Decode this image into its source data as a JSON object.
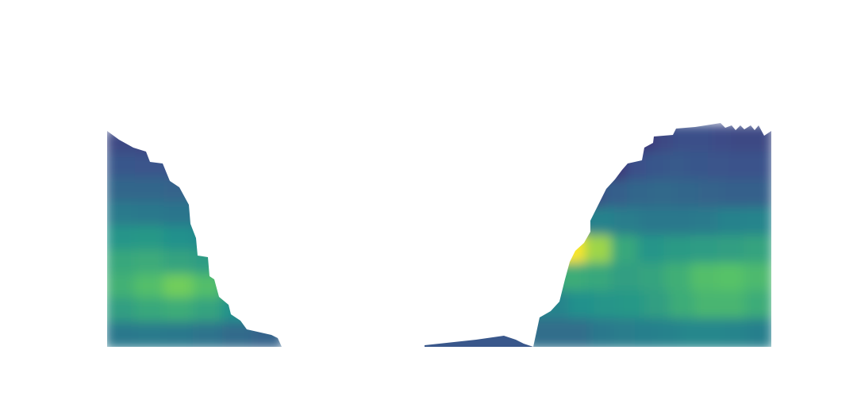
{
  "chart_data": {
    "type": "heatmap",
    "title": "",
    "xlabel": "",
    "ylabel": "",
    "axes_visible": false,
    "colormap": "viridis",
    "colormap_stops": [
      "#440154",
      "#3b528b",
      "#21918c",
      "#5ec962",
      "#fde725"
    ],
    "regions": [
      {
        "name": "left-region",
        "rows": [
          {
            "x_end": 0.62,
            "v": [
              0.22,
              0.21,
              0.2,
              0.2,
              0.19
            ]
          },
          {
            "x_end": 0.74,
            "v": [
              0.27,
              0.26,
              0.25,
              0.25,
              0.24,
              0.22
            ]
          },
          {
            "x_end": 0.84,
            "v": [
              0.33,
              0.33,
              0.32,
              0.31,
              0.3,
              0.28
            ]
          },
          {
            "x_end": 0.93,
            "v": [
              0.41,
              0.4,
              0.39,
              0.38,
              0.37,
              0.35
            ]
          },
          {
            "x_end": 1.0,
            "v": [
              0.52,
              0.53,
              0.5,
              0.47,
              0.44,
              0.41
            ]
          },
          {
            "x_end": 1.0,
            "v": [
              0.6,
              0.61,
              0.58,
              0.55,
              0.5,
              0.45
            ]
          },
          {
            "x_end": 1.0,
            "v": [
              0.64,
              0.7,
              0.78,
              0.7,
              0.56,
              0.48
            ]
          },
          {
            "x_end": 1.0,
            "v": [
              0.56,
              0.6,
              0.62,
              0.58,
              0.5,
              0.43
            ]
          },
          {
            "x_end": 1.0,
            "v": [
              0.4,
              0.41,
              0.4,
              0.38,
              0.35,
              0.32
            ]
          }
        ]
      },
      {
        "name": "right-region",
        "rows": [
          {
            "x_start": 0.35,
            "v": [
              0.1,
              0.17,
              0.22,
              0.24,
              0.24,
              0.23,
              0.22,
              0.22
            ]
          },
          {
            "x_start": 0.22,
            "v": [
              0.1,
              0.16,
              0.24,
              0.27,
              0.28,
              0.27,
              0.26,
              0.25,
              0.25
            ]
          },
          {
            "x_start": 0.1,
            "v": [
              0.12,
              0.22,
              0.3,
              0.33,
              0.34,
              0.33,
              0.32,
              0.31,
              0.31
            ]
          },
          {
            "x_start": 0.02,
            "v": [
              0.3,
              0.42,
              0.44,
              0.42,
              0.4,
              0.4,
              0.41,
              0.44,
              0.45
            ]
          },
          {
            "x_start": 0.0,
            "v": [
              0.85,
              1.0,
              0.85,
              0.6,
              0.52,
              0.54,
              0.55,
              0.56,
              0.58
            ]
          },
          {
            "x_start": 0.0,
            "v": [
              0.55,
              0.62,
              0.6,
              0.56,
              0.58,
              0.63,
              0.7,
              0.72,
              0.68
            ]
          },
          {
            "x_start": 0.05,
            "v": [
              0.45,
              0.5,
              0.52,
              0.53,
              0.56,
              0.62,
              0.66,
              0.66,
              0.62
            ]
          },
          {
            "x_start": 0.15,
            "v": [
              0.36,
              0.4,
              0.42,
              0.43,
              0.44,
              0.46,
              0.46,
              0.45,
              0.43
            ]
          }
        ]
      },
      {
        "name": "bottom-sliver",
        "value": 0.27
      }
    ]
  }
}
